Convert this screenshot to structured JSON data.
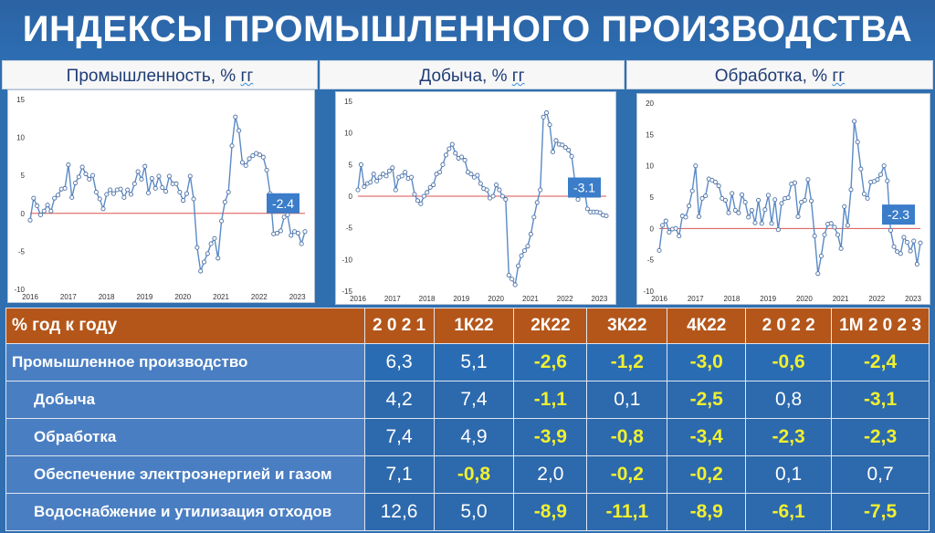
{
  "title": "ИНДЕКСЫ ПРОМЫШЛЕННОГО ПРОИЗВОДСТВА",
  "panels": [
    {
      "title_main": "Промышленность, % ",
      "title_unit": "гг"
    },
    {
      "title_main": "Добыча, % ",
      "title_unit": "гг"
    },
    {
      "title_main": "Обработка, % ",
      "title_unit": "гг"
    }
  ],
  "colors": {
    "line": "#5a8ac6",
    "zero_line": "#d9534f",
    "callout": "#3b7dc9",
    "negative_text": "#f0f030"
  },
  "chart_data": [
    {
      "type": "line",
      "ylim": [
        -10,
        15
      ],
      "yticks": [
        -10,
        -5,
        0,
        5,
        10,
        15
      ],
      "xticks": [
        "2016",
        "2017",
        "2018",
        "2019",
        "2020",
        "2021",
        "2022",
        "2023"
      ],
      "x_start": 2016.0,
      "x_end": 2023.2,
      "callout": "-2.4",
      "values": [
        -0.9,
        2.0,
        1.0,
        -0.2,
        0.3,
        1.1,
        0.3,
        2.0,
        2.4,
        3.2,
        3.3,
        6.4,
        2.1,
        4.0,
        4.8,
        6.1,
        5.2,
        4.5,
        5.0,
        2.8,
        1.9,
        0.6,
        2.5,
        3.1,
        2.6,
        3.1,
        3.2,
        2.1,
        3.1,
        2.5,
        3.9,
        5.5,
        4.5,
        6.2,
        2.7,
        4.6,
        3.3,
        4.9,
        3.4,
        2.9,
        4.9,
        3.9,
        3.9,
        2.8,
        1.7,
        2.6,
        4.9,
        1.9,
        -4.5,
        -7.6,
        -6.4,
        -5.3,
        -4.0,
        -3.3,
        -5.9,
        -1.0,
        1.5,
        2.8,
        8.9,
        12.7,
        10.9,
        6.7,
        6.3,
        7.2,
        7.6,
        7.9,
        7.7,
        7.4,
        5.7,
        2.6,
        -2.7,
        -2.6,
        -2.3,
        -0.5,
        -0.2,
        -2.9,
        -2.4,
        -2.6,
        -4.0,
        -2.4
      ]
    },
    {
      "type": "line",
      "ylim": [
        -15,
        15
      ],
      "yticks": [
        -15,
        -10,
        -5,
        0,
        5,
        10,
        15
      ],
      "xticks": [
        "2016",
        "2017",
        "2018",
        "2019",
        "2020",
        "2021",
        "2022",
        "2023"
      ],
      "x_start": 2016.0,
      "x_end": 2023.2,
      "callout": "-3.1",
      "values": [
        1.0,
        5.0,
        1.5,
        2.0,
        2.2,
        3.5,
        2.4,
        3.0,
        3.5,
        3.2,
        4.0,
        4.5,
        1.0,
        3.0,
        3.2,
        3.8,
        2.8,
        3.0,
        0.3,
        -0.7,
        -1.2,
        0.0,
        0.6,
        1.4,
        1.8,
        3.5,
        3.8,
        5.0,
        6.5,
        7.5,
        8.2,
        6.8,
        6.0,
        6.2,
        5.7,
        3.8,
        3.5,
        3.0,
        3.3,
        2.0,
        1.2,
        1.0,
        -0.3,
        0.0,
        1.8,
        1.0,
        0.0,
        -0.5,
        -12.5,
        -13.1,
        -14.0,
        -11.0,
        -9.4,
        -8.6,
        -7.9,
        -6.0,
        -3.3,
        -1.0,
        1.0,
        12.5,
        13.2,
        11.3,
        7.0,
        8.8,
        8.2,
        8.1,
        7.7,
        7.3,
        6.3,
        2.4,
        -0.5,
        1.4,
        1.2,
        -2.0,
        -2.5,
        -2.5,
        -2.5,
        -2.6,
        -3.0,
        -3.1
      ]
    },
    {
      "type": "line",
      "ylim": [
        -10,
        20
      ],
      "yticks": [
        -10,
        -5,
        0,
        5,
        10,
        15,
        20
      ],
      "xticks": [
        "2016",
        "2017",
        "2018",
        "2019",
        "2020",
        "2021",
        "2022",
        "2023"
      ],
      "x_start": 2016.0,
      "x_end": 2023.2,
      "callout": "-2.3",
      "values": [
        -3.5,
        0.5,
        1.2,
        -0.6,
        -0.1,
        0.0,
        -1.2,
        2.0,
        1.8,
        3.6,
        6.0,
        10.0,
        1.9,
        4.8,
        5.2,
        7.9,
        7.7,
        7.4,
        6.8,
        4.8,
        4.5,
        2.5,
        5.6,
        2.9,
        2.5,
        5.4,
        4.2,
        1.8,
        2.9,
        0.9,
        4.5,
        0.8,
        3.0,
        5.3,
        0.8,
        4.6,
        -0.2,
        4.0,
        4.8,
        4.9,
        7.1,
        7.3,
        1.9,
        4.2,
        4.5,
        7.8,
        4.4,
        -1.2,
        -7.2,
        -4.4,
        -1.0,
        0.7,
        0.8,
        0.2,
        -1.0,
        -3.2,
        3.5,
        0.5,
        6.2,
        17.1,
        13.8,
        9.5,
        5.5,
        4.8,
        7.4,
        7.5,
        7.8,
        8.6,
        10.0,
        7.6,
        -0.3,
        -2.9,
        -3.7,
        -4.0,
        -1.4,
        -2.2,
        -3.6,
        -2.0,
        -5.7,
        -2.3
      ]
    }
  ],
  "table": {
    "header": [
      "% год к году",
      "2 0 2 1",
      "1К22",
      "2К22",
      "3К22",
      "4К22",
      "2 0 2 2",
      "1М 2 0 2 3"
    ],
    "rows": [
      {
        "label": "Промышленное производство",
        "values": [
          "6,3",
          "5,1",
          "-2,6",
          "-1,2",
          "-3,0",
          "-0,6",
          "-2,4"
        ]
      },
      {
        "label": "Добыча",
        "values": [
          "4,2",
          "7,4",
          "-1,1",
          "0,1",
          "-2,5",
          "0,8",
          "-3,1"
        ]
      },
      {
        "label": "Обработка",
        "values": [
          "7,4",
          "4,9",
          "-3,9",
          "-0,8",
          "-3,4",
          "-2,3",
          "-2,3"
        ]
      },
      {
        "label": "Обеспечение электроэнергией и газом",
        "values": [
          "7,1",
          "-0,8",
          "2,0",
          "-0,2",
          "-0,2",
          "0,1",
          "0,7"
        ]
      },
      {
        "label": "Водоснабжение и утилизация отходов",
        "values": [
          "12,6",
          "5,0",
          "-8,9",
          "-11,1",
          "-8,9",
          "-6,1",
          "-7,5"
        ]
      }
    ]
  }
}
